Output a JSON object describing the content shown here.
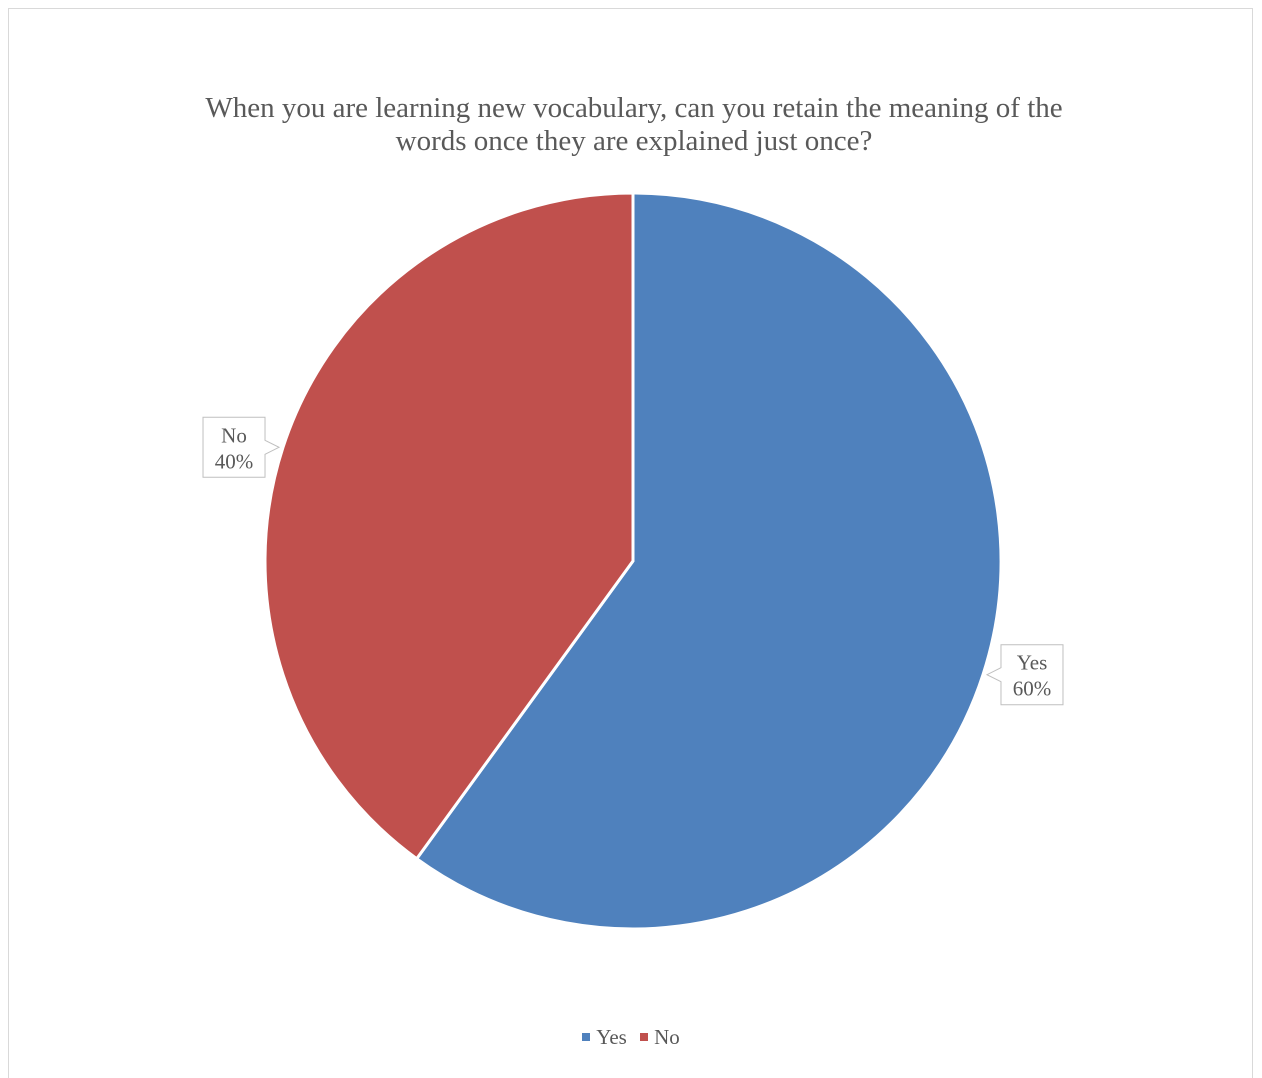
{
  "chart_data": {
    "type": "pie",
    "title": "When you are learning new vocabulary, can you retain the meaning of the\nwords once they are explained just once?",
    "categories": [
      "Yes",
      "No"
    ],
    "values": [
      60,
      40
    ],
    "data_labels": [
      {
        "category": "Yes",
        "percent": "60%"
      },
      {
        "category": "No",
        "percent": "40%"
      }
    ],
    "colors": [
      "#4F81BD",
      "#C0504D"
    ],
    "legend": {
      "position": "bottom",
      "entries": [
        "Yes",
        "No"
      ]
    },
    "start_angle_deg": 0,
    "direction": "clockwise"
  }
}
